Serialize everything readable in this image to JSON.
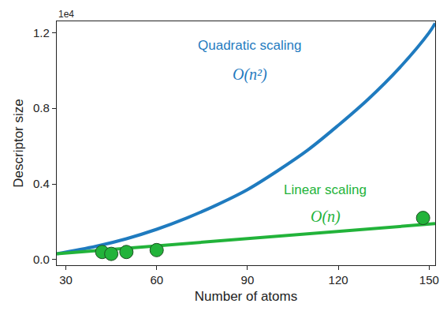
{
  "chart_data": {
    "type": "line",
    "x_label": "Number of atoms",
    "y_label": "Descriptor size",
    "annotations": [
      "1e4"
    ],
    "xlim": [
      27,
      152
    ],
    "xticks": [
      30,
      60,
      90,
      120,
      150
    ],
    "ylim": [
      -0.03,
      1.26
    ],
    "yticks": [
      {
        "value": 0,
        "label": "0.0"
      },
      0.4,
      0.8,
      1.2
    ],
    "grid": false,
    "series": [
      {
        "name": "Quadratic scaling",
        "notation": "O(n²)",
        "type": "line",
        "color": "#1f7bbf",
        "x": [
          27,
          40,
          50,
          60,
          70,
          80,
          90,
          100,
          110,
          120,
          130,
          140,
          150,
          152
        ],
        "values": [
          0.03,
          0.07,
          0.11,
          0.16,
          0.22,
          0.29,
          0.37,
          0.47,
          0.58,
          0.71,
          0.85,
          1.01,
          1.2,
          1.25
        ]
      },
      {
        "name": "Linear scaling",
        "notation": "O(n)",
        "type": "line",
        "color": "#22b33a",
        "x": [
          27,
          152
        ],
        "values": [
          0.03,
          0.19
        ]
      },
      {
        "type": "scatter",
        "marker": "circle",
        "color": "#22b33a",
        "x": [
          42,
          45,
          50,
          60,
          148
        ],
        "values": [
          0.04,
          0.03,
          0.04,
          0.05,
          0.22
        ]
      }
    ]
  }
}
